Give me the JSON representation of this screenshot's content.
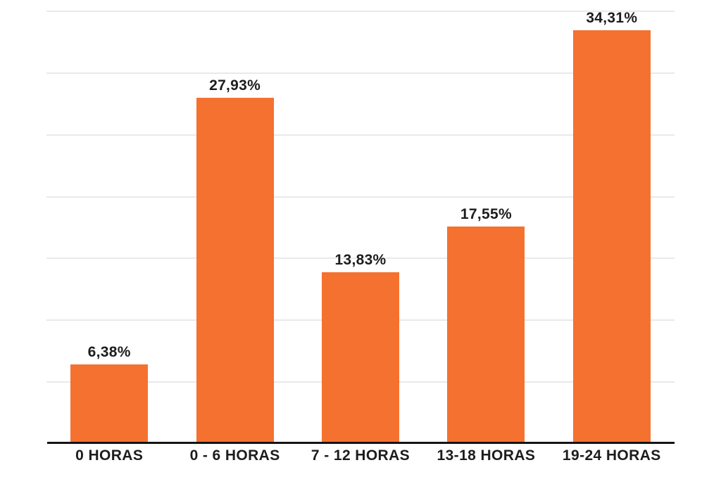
{
  "chart_data": {
    "type": "bar",
    "title": "",
    "categories": [
      "0 HORAS",
      "0 - 6 HORAS",
      "7 - 12 HORAS",
      "13-18 HORAS",
      "19-24 HORAS"
    ],
    "values": [
      6.38,
      27.93,
      13.83,
      17.55,
      34.31
    ],
    "value_labels": [
      "6,38%",
      "27,93%",
      "13,83%",
      "17,55%",
      "34,31%"
    ],
    "xlabel": "",
    "ylabel": "",
    "ylim": [
      0,
      35
    ],
    "gridline_step": 5,
    "grid": true,
    "y_tick_labels_visible": false,
    "legend_position": "none",
    "bar_color": "#F5712F",
    "gridline_color": "#E9E9E9",
    "axis_color": "#141414",
    "label_color": "#1D1D1D",
    "background_color": "#FFFFFF"
  }
}
